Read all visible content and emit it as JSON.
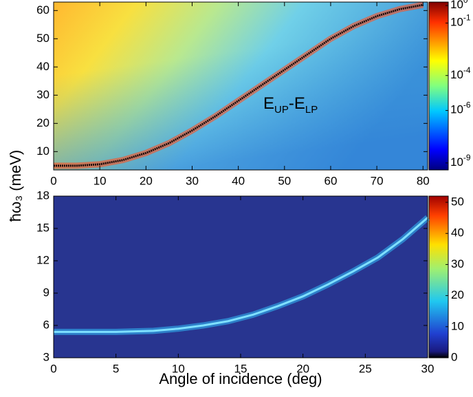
{
  "chart_data": [
    {
      "type": "heatmap-line",
      "y_label": "ħω₃ (meV)",
      "annotation_parts": [
        "E",
        "UP",
        "-E",
        "LP"
      ],
      "x": [
        0,
        5,
        10,
        15,
        20,
        25,
        30,
        35,
        40,
        45,
        50,
        55,
        60,
        65,
        70,
        75,
        80
      ],
      "series": [
        {
          "color": "#1a0a0a",
          "values": [
            5,
            5,
            5.5,
            7,
            9.5,
            13,
            17.5,
            22.5,
            28,
            33.5,
            39,
            44.5,
            50,
            54.5,
            58,
            60.5,
            62
          ]
        }
      ],
      "xlim": [
        0,
        81
      ],
      "xticks": [
        0,
        10,
        20,
        30,
        40,
        50,
        60,
        70,
        80
      ],
      "ylim": [
        3.5,
        63
      ],
      "yticks": [
        10,
        20,
        30,
        40,
        50,
        60
      ],
      "colorbar_scale": "log",
      "colorbar_tick_base": "10",
      "colorbar_lim": [
        -9.4,
        0.2
      ],
      "colorbar_ticks": [
        0,
        -1,
        -4,
        -6,
        -9
      ]
    },
    {
      "type": "heatmap-line",
      "x_label": "Angle of incidence (deg)",
      "x": [
        0,
        5,
        8,
        10,
        12,
        14,
        16,
        18,
        20,
        22,
        24,
        26,
        28,
        30
      ],
      "series": [
        {
          "color": "#7fe0ff",
          "values": [
            5.4,
            5.4,
            5.5,
            5.7,
            6,
            6.4,
            7,
            7.8,
            8.7,
            9.8,
            11,
            12.3,
            14,
            16
          ]
        }
      ],
      "xlim": [
        0,
        30
      ],
      "xticks": [
        0,
        5,
        10,
        15,
        20,
        25,
        30
      ],
      "ylim": [
        3,
        18
      ],
      "yticks": [
        3,
        6,
        9,
        12,
        15,
        18
      ],
      "colorbar_scale": "linear",
      "colorbar_lim": [
        0,
        52
      ],
      "colorbar_ticks": [
        0,
        10,
        20,
        30,
        40,
        50
      ]
    }
  ]
}
